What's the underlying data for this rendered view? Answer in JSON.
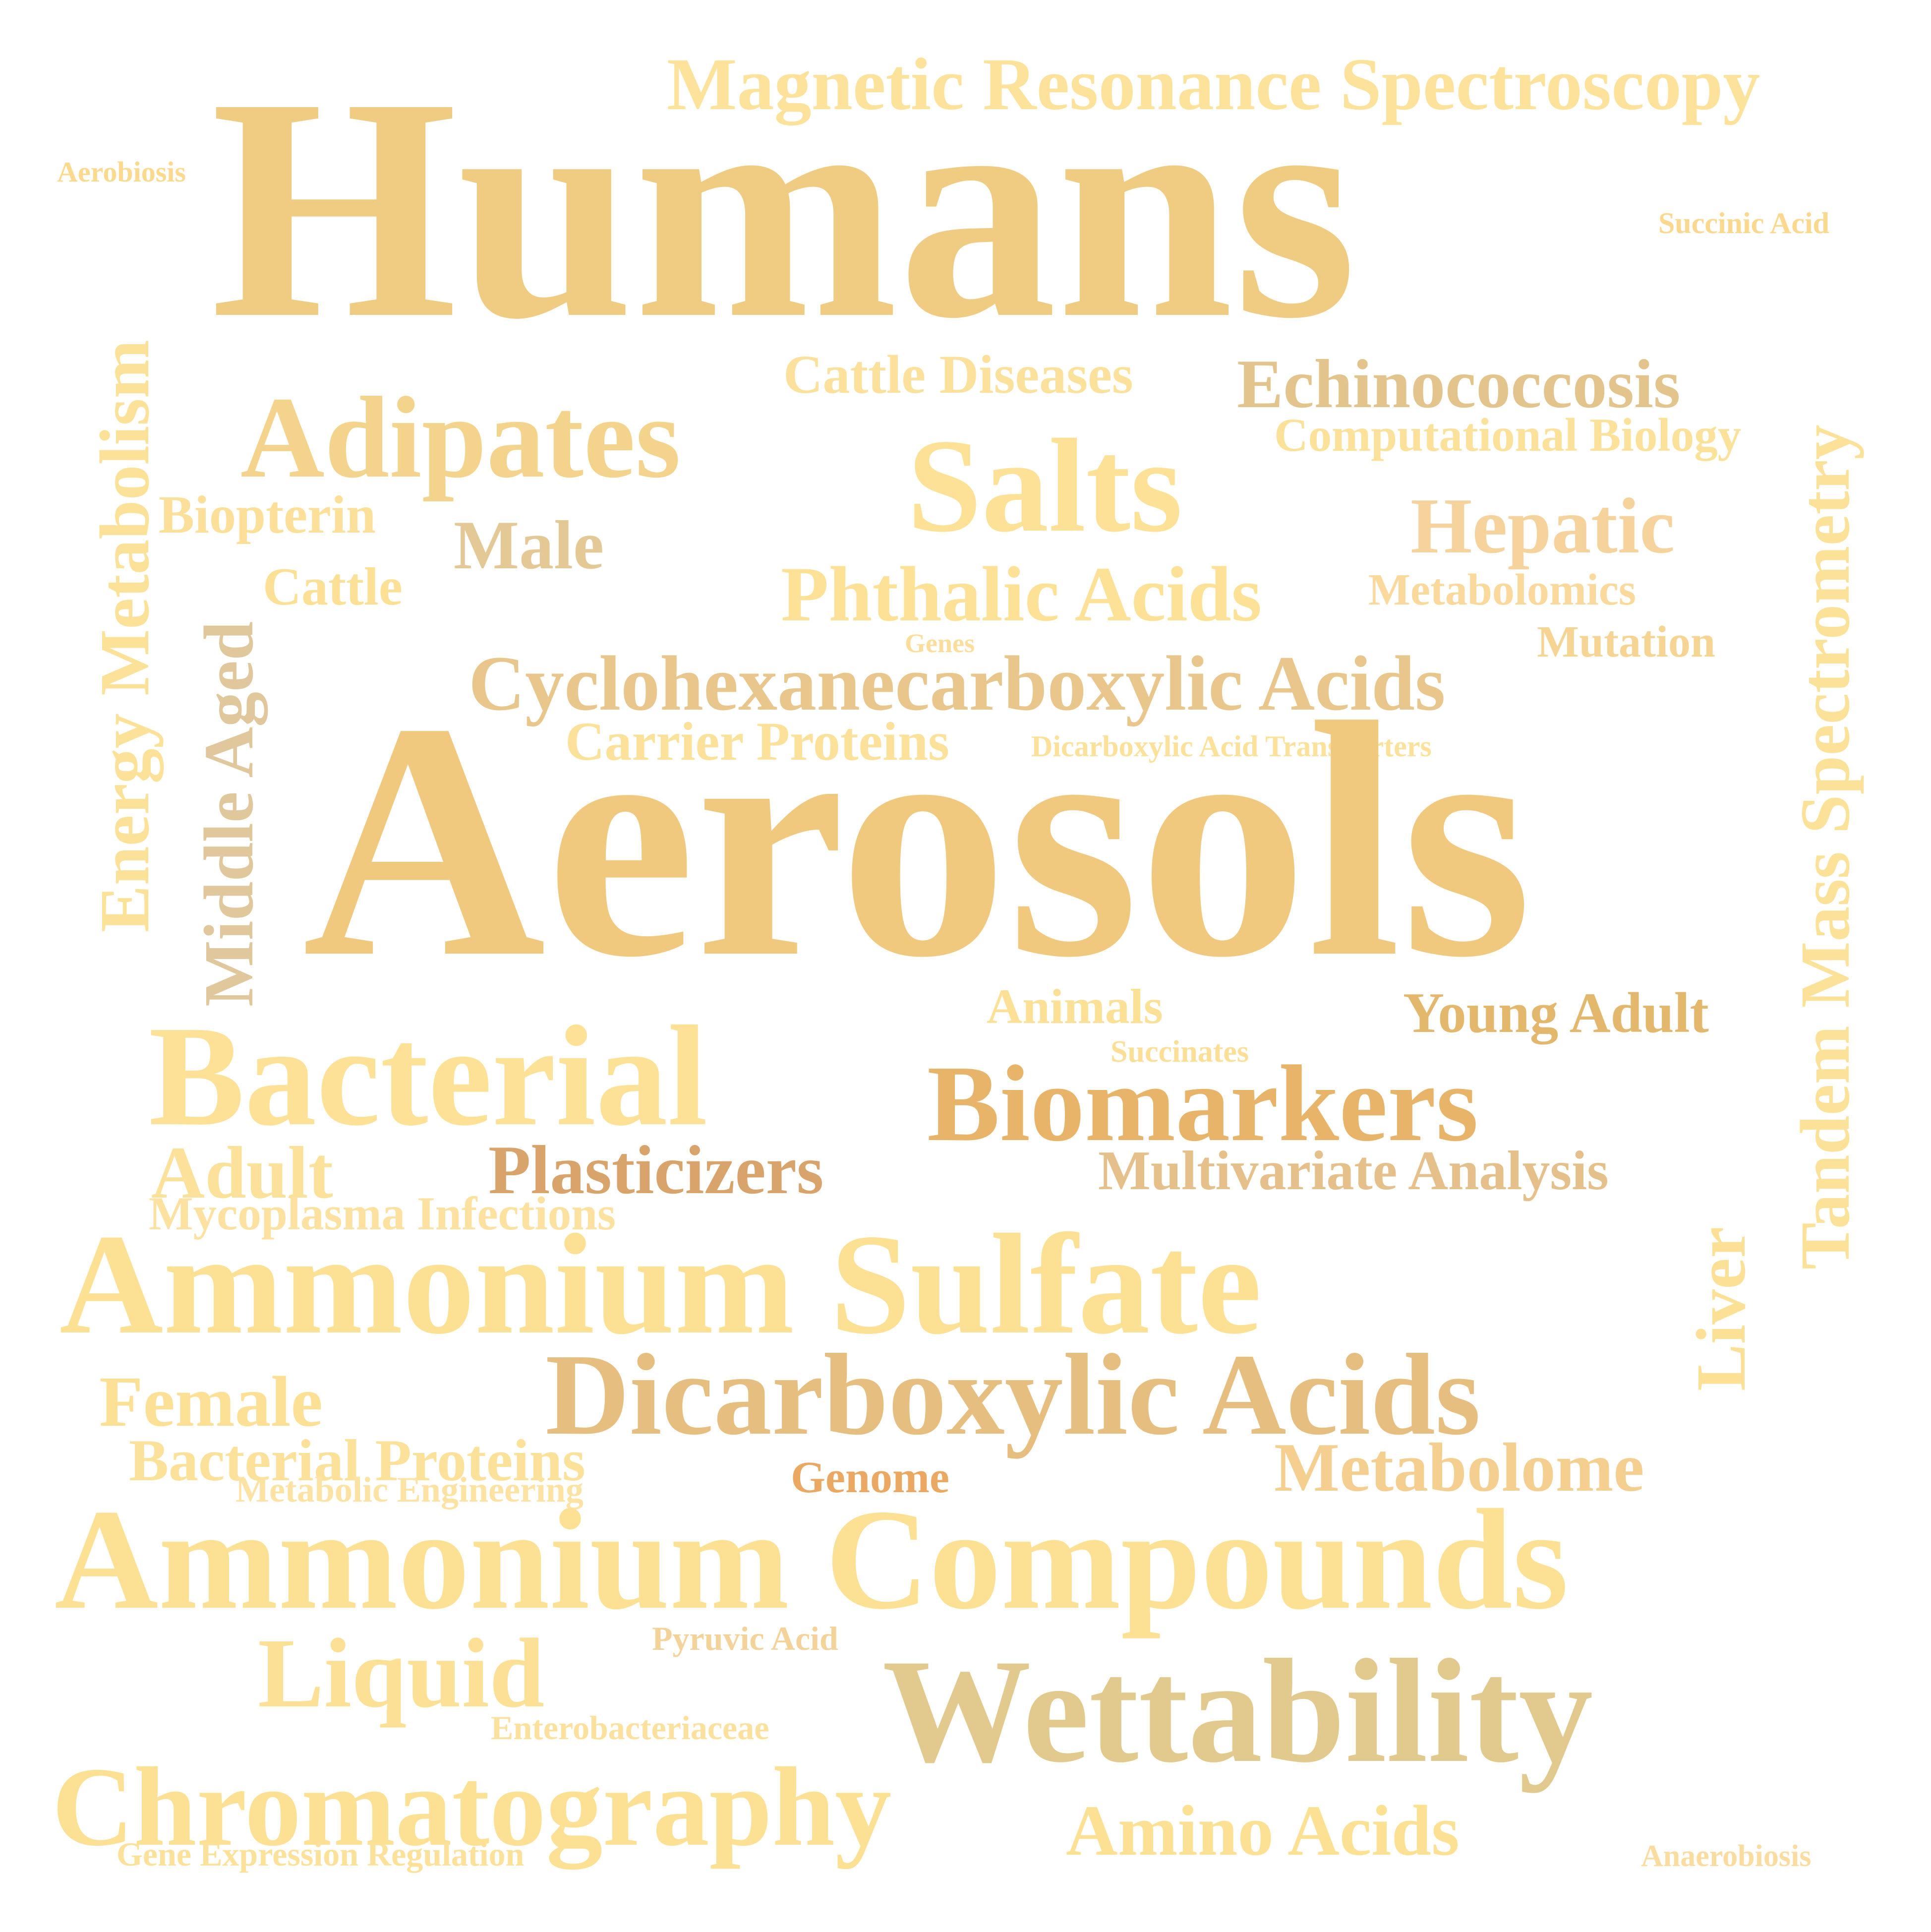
{
  "words": [
    {
      "text": "Humans",
      "color": "#F0CC82"
    },
    {
      "text": "Magnetic Resonance Spectroscopy",
      "color": "#FCE29A"
    },
    {
      "text": "Aerobiosis",
      "color": "#FBD98E"
    },
    {
      "text": "Succinic Acid",
      "color": "#FBD88E"
    },
    {
      "text": "Tandem Mass Spectrometry",
      "color": "#FCE198"
    },
    {
      "text": "Energy Metabolism",
      "color": "#FCE198"
    },
    {
      "text": "Cattle Diseases",
      "color": "#FCE19D"
    },
    {
      "text": "Echinococcosis",
      "color": "#E2C48C"
    },
    {
      "text": "Adipates",
      "color": "#F4D48C"
    },
    {
      "text": "Computational Biology",
      "color": "#FCE19A"
    },
    {
      "text": "Salts",
      "color": "#FCE196"
    },
    {
      "text": "Biopterin",
      "color": "#FCE099"
    },
    {
      "text": "Male",
      "color": "#E4C896"
    },
    {
      "text": "Hepatic",
      "color": "#F6D39C"
    },
    {
      "text": "Middle Aged",
      "color": "#E0C79C"
    },
    {
      "text": "Cattle",
      "color": "#FCE096"
    },
    {
      "text": "Phthalic Acids",
      "color": "#FCE196"
    },
    {
      "text": "Metabolomics",
      "color": "#FBD99C"
    },
    {
      "text": "Genes",
      "color": "#FBDE9C"
    },
    {
      "text": "Mutation",
      "color": "#F6D594"
    },
    {
      "text": "Cyclohexanecarboxylic Acids",
      "color": "#E9C68C"
    },
    {
      "text": "Carrier Proteins",
      "color": "#FCE19A"
    },
    {
      "text": "Dicarboxylic Acid Transporters",
      "color": "#FCE19A"
    },
    {
      "text": "Aerosols",
      "color": "#F0C97E"
    },
    {
      "text": "Animals",
      "color": "#FCE096"
    },
    {
      "text": "Young Adult",
      "color": "#E3B76C"
    },
    {
      "text": "Bacterial",
      "color": "#FCE196"
    },
    {
      "text": "Succinates",
      "color": "#FCDF97"
    },
    {
      "text": "Biomarkers",
      "color": "#E7B46A"
    },
    {
      "text": "Adult",
      "color": "#FCE19A"
    },
    {
      "text": "Plasticizers",
      "color": "#D9A46C"
    },
    {
      "text": "Multivariate Analysis",
      "color": "#E6C08A"
    },
    {
      "text": "Mycoplasma Infections",
      "color": "#FCE1A0"
    },
    {
      "text": "Ammonium Sulfate",
      "color": "#FCE094"
    },
    {
      "text": "Liver",
      "color": "#FCE096"
    },
    {
      "text": "Female",
      "color": "#FCE096"
    },
    {
      "text": "Dicarboxylic Acids",
      "color": "#E5BE80"
    },
    {
      "text": "Bacterial Proteins",
      "color": "#FCE19A"
    },
    {
      "text": "Genome",
      "color": "#EAA862"
    },
    {
      "text": "Metabolome",
      "color": "#F4CF90"
    },
    {
      "text": "Metabolic Engineering",
      "color": "#FCE3A4"
    },
    {
      "text": "Ammonium Compounds",
      "color": "#FCE194"
    },
    {
      "text": "Pyruvic Acid",
      "color": "#F4D39A"
    },
    {
      "text": "Liquid",
      "color": "#FCE096"
    },
    {
      "text": "Wettability",
      "color": "#E2CA8E"
    },
    {
      "text": "Enterobacteriaceae",
      "color": "#FCE19E"
    },
    {
      "text": "Chromatography",
      "color": "#FCE194"
    },
    {
      "text": "Amino Acids",
      "color": "#FCE194"
    },
    {
      "text": "Gene Expression Regulation",
      "color": "#FCE19A"
    },
    {
      "text": "Anaerobiosis",
      "color": "#FBDCA0"
    }
  ]
}
